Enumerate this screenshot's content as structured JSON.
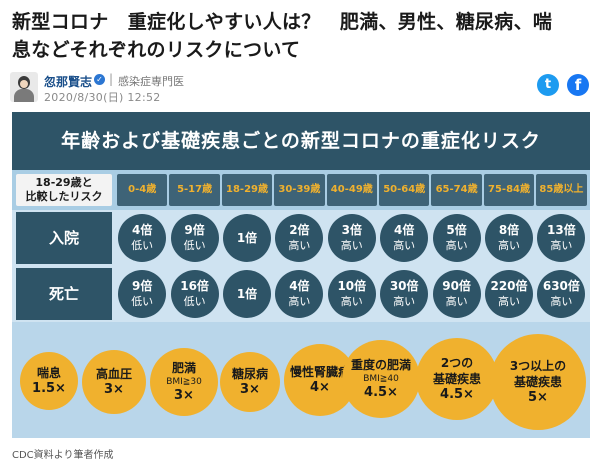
{
  "headline": "新型コロナ　重症化しやすい人は？　肥満、男性、糖尿病、喘息などそれぞれのリスクについて",
  "author": {
    "name": "忽那賢志",
    "verified_mark": "✓",
    "separator": "|",
    "title": "感染症専門医",
    "date": "2020/8/30(日) 12:52"
  },
  "share": {
    "twitter": "t",
    "facebook": "f"
  },
  "infographic": {
    "title": "年齢および基礎疾患ごとの新型コロナの重症化リスク",
    "comparison_label_line1": "18-29歳と",
    "comparison_label_line2": "比較したリスク",
    "ages": [
      "0-4歳",
      "5-17歳",
      "18-29歳",
      "30-39歳",
      "40-49歳",
      "50-64歳",
      "65-74歳",
      "75-84歳",
      "85歳以上"
    ],
    "hospitalization": {
      "label": "入院",
      "cells": [
        {
          "value": "4倍",
          "sub": "低い"
        },
        {
          "value": "9倍",
          "sub": "低い"
        },
        {
          "value": "1倍",
          "sub": ""
        },
        {
          "value": "2倍",
          "sub": "高い"
        },
        {
          "value": "3倍",
          "sub": "高い"
        },
        {
          "value": "4倍",
          "sub": "高い"
        },
        {
          "value": "5倍",
          "sub": "高い"
        },
        {
          "value": "8倍",
          "sub": "高い"
        },
        {
          "value": "13倍",
          "sub": "高い"
        }
      ]
    },
    "death": {
      "label": "死亡",
      "cells": [
        {
          "value": "9倍",
          "sub": "低い"
        },
        {
          "value": "16倍",
          "sub": "低い"
        },
        {
          "value": "1倍",
          "sub": ""
        },
        {
          "value": "4倍",
          "sub": "高い"
        },
        {
          "value": "10倍",
          "sub": "高い"
        },
        {
          "value": "30倍",
          "sub": "高い"
        },
        {
          "value": "90倍",
          "sub": "高い"
        },
        {
          "value": "220倍",
          "sub": "高い"
        },
        {
          "value": "630倍",
          "sub": "高い"
        }
      ]
    },
    "conditions": [
      {
        "name": "喘息",
        "name2": "",
        "bmi": "",
        "mult": "1.5×"
      },
      {
        "name": "高血圧",
        "name2": "",
        "bmi": "",
        "mult": "3×"
      },
      {
        "name": "肥満",
        "name2": "",
        "bmi": "BMI≧30",
        "mult": "3×"
      },
      {
        "name": "糖尿病",
        "name2": "",
        "bmi": "",
        "mult": "3×"
      },
      {
        "name": "慢性腎臓病",
        "name2": "",
        "bmi": "",
        "mult": "4×"
      },
      {
        "name": "重度の肥満",
        "name2": "",
        "bmi": "BMI≧40",
        "mult": "4.5×"
      },
      {
        "name": "2つの",
        "name2": "基礎疾患",
        "bmi": "",
        "mult": "4.5×"
      },
      {
        "name": "3つ以上の",
        "name2": "基礎疾患",
        "bmi": "",
        "mult": "5×"
      }
    ]
  },
  "caption": "CDC資料より筆者作成",
  "colors": {
    "dark_teal": "#2e5467",
    "orange": "#f0b12e",
    "light_blue": "#b9d6ea"
  }
}
